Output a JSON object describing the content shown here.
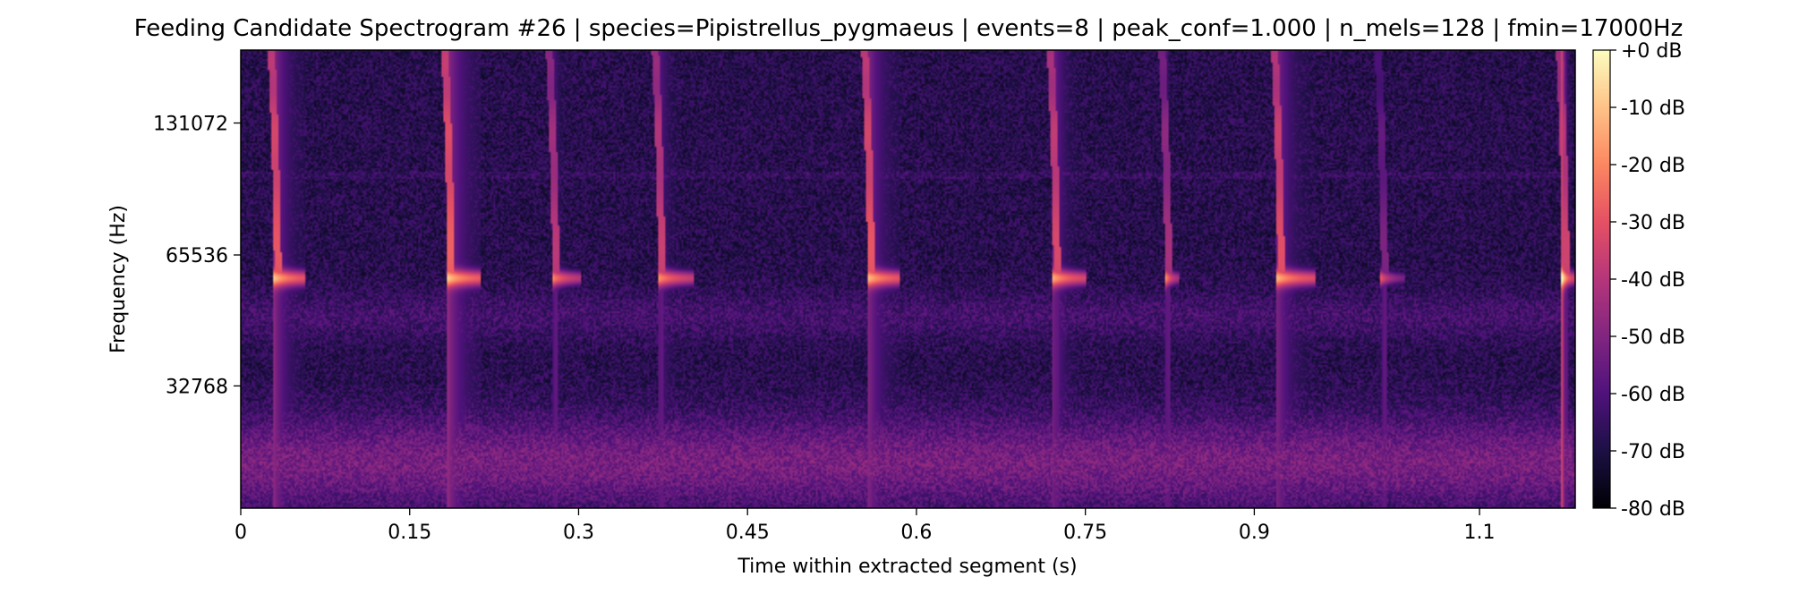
{
  "chart_data": {
    "type": "heatmap",
    "title": "Feeding Candidate Spectrogram #26 | species=Pipistrellus_pygmaeus | events=8 | peak_conf=1.000 | n_mels=128 | fmin=17000Hz",
    "xlabel": "Time within extracted segment (s)",
    "ylabel": "Frequency (Hz)",
    "x_ticks": [
      0,
      0.15,
      0.3,
      0.45,
      0.6,
      0.75,
      0.9,
      1.1
    ],
    "x_tick_labels": [
      "0",
      "0.15",
      "0.3",
      "0.45",
      "0.6",
      "0.75",
      "0.9",
      "1.1"
    ],
    "xlim": [
      0,
      1.185
    ],
    "y_scale": "mel",
    "y_ticks": [
      32768,
      65536,
      131072
    ],
    "y_tick_labels": [
      "32768",
      "65536",
      "131072"
    ],
    "ylim": [
      17000,
      192000
    ],
    "colormap": "magma",
    "colorbar": {
      "ticks": [
        0,
        -10,
        -20,
        -30,
        -40,
        -50,
        -60,
        -70,
        -80
      ],
      "labels": [
        "+0 dB",
        "-10 dB",
        "-20 dB",
        "-30 dB",
        "-40 dB",
        "-50 dB",
        "-60 dB",
        "-70 dB",
        "-80 dB"
      ],
      "range": [
        -80,
        0
      ]
    },
    "background_level_db": -68,
    "low_band_level_db": -52,
    "calls": [
      {
        "t": 0.033,
        "peak_db": -8,
        "tail": 0.024
      },
      {
        "t": 0.187,
        "peak_db": -6,
        "tail": 0.026
      },
      {
        "t": 0.28,
        "peak_db": -18,
        "tail": 0.022
      },
      {
        "t": 0.374,
        "peak_db": -15,
        "tail": 0.028
      },
      {
        "t": 0.56,
        "peak_db": -8,
        "tail": 0.026
      },
      {
        "t": 0.725,
        "peak_db": -12,
        "tail": 0.026
      },
      {
        "t": 0.824,
        "peak_db": -22,
        "tail": 0.01
      },
      {
        "t": 0.924,
        "peak_db": -10,
        "tail": 0.03
      },
      {
        "t": 1.016,
        "peak_db": -30,
        "tail": 0.018
      },
      {
        "t": 1.177,
        "peak_db": -14,
        "tail": 0.008
      }
    ]
  }
}
